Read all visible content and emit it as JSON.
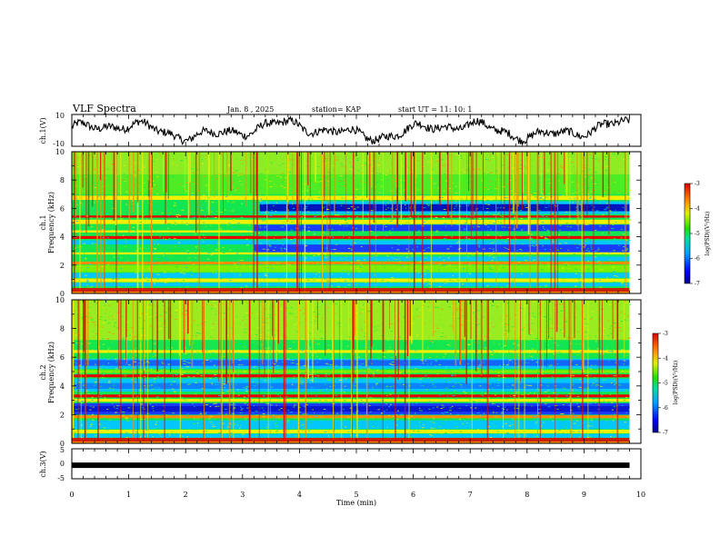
{
  "header": {
    "title": "VLF Spectra",
    "date": "Jan. 8 , 2025",
    "station": "station= KAP",
    "start": "start UT =  11: 10: 1"
  },
  "colors": {
    "spectrum": [
      "#0000b4",
      "#1a3cff",
      "#00c8ff",
      "#14e650",
      "#7df000",
      "#f0f000",
      "#ff8c00",
      "#e60000"
    ]
  },
  "chart_data": [
    {
      "type": "line",
      "name": "ch1-waveform",
      "ylabel": "ch.1(V)",
      "ylim": [
        -10,
        10
      ],
      "y_ticks": [
        "10",
        "-10"
      ],
      "xlim": [
        0,
        10
      ]
    },
    {
      "type": "heatmap",
      "name": "ch1-spectrogram",
      "ylabel": "ch.1\nFrequency (kHz)",
      "ylabel_lines": [
        "ch.1",
        "Frequency (kHz)"
      ],
      "ylim": [
        0,
        10
      ],
      "y_ticks": [
        "0",
        "2",
        "4",
        "6",
        "8",
        "10"
      ],
      "xlim": [
        0,
        10
      ],
      "colorbar": {
        "label": "log(PSD)(V²/Hz)",
        "range": [
          -7,
          -3
        ],
        "ticks": [
          "-3",
          "-4",
          "-5",
          "-6",
          "-7"
        ]
      }
    },
    {
      "type": "heatmap",
      "name": "ch2-spectrogram",
      "ylabel_lines": [
        "ch.2",
        "Frequency (kHz)"
      ],
      "ylim": [
        0,
        10
      ],
      "y_ticks": [
        "0",
        "2",
        "4",
        "6",
        "8",
        "10"
      ],
      "xlim": [
        0,
        10
      ],
      "colorbar": {
        "label": "log(PSD)(V²/Hz)",
        "range": [
          -7,
          -3
        ],
        "ticks": [
          "-3",
          "-4",
          "-5",
          "-6",
          "-7"
        ]
      }
    },
    {
      "type": "line",
      "name": "ch3-waveform",
      "ylabel": "ch.3(V)",
      "ylim": [
        -5,
        5
      ],
      "y_ticks": [
        "5",
        "0",
        "-5"
      ],
      "xlim": [
        0,
        10
      ],
      "level": -0.5
    }
  ],
  "xaxis": {
    "label": "Time (min)",
    "ticks": [
      "0",
      "1",
      "2",
      "3",
      "4",
      "5",
      "6",
      "7",
      "8",
      "9",
      "10"
    ],
    "data_end": 9.8
  }
}
